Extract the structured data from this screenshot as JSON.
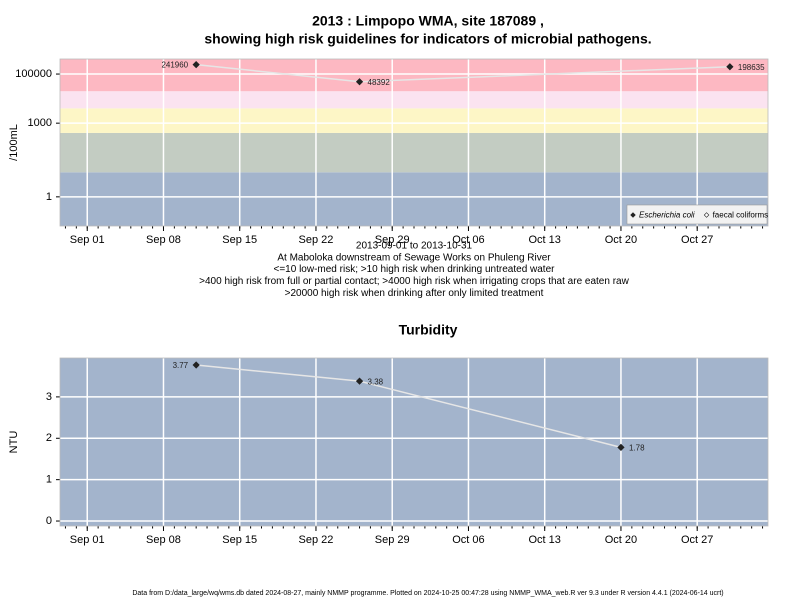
{
  "chart_data": [
    {
      "type": "line",
      "title": [
        "2013 : Limpopo WMA, site 187089 ,",
        "showing high risk guidelines for indicators of microbial pathogens."
      ],
      "ylabel": "/100mL",
      "log_y": true,
      "grid": true,
      "ylim": [
        0.065,
        410000
      ],
      "yticks": [
        1,
        1000,
        100000
      ],
      "xlim": [
        "2013-08-29T12:00:00Z",
        "2013-11-02T12:00:00Z"
      ],
      "xticks": [
        {
          "value": "2013-09-01",
          "label": "Sep 01"
        },
        {
          "value": "2013-09-08",
          "label": "Sep 08"
        },
        {
          "value": "2013-09-15",
          "label": "Sep 15"
        },
        {
          "value": "2013-09-22",
          "label": "Sep 22"
        },
        {
          "value": "2013-09-29",
          "label": "Sep 29"
        },
        {
          "value": "2013-10-06",
          "label": "Oct 06"
        },
        {
          "value": "2013-10-13",
          "label": "Oct 13"
        },
        {
          "value": "2013-10-20",
          "label": "Oct 20"
        },
        {
          "value": "2013-10-27",
          "label": "Oct 27"
        }
      ],
      "risk_thresholds": [
        10,
        400,
        4000,
        20000
      ],
      "risk_colors": [
        "#a3b4cc",
        "#c3ccc2",
        "#fdf6c6",
        "#fbe3f0",
        "#fdb8c2"
      ],
      "line_color": "#e6e6e6",
      "series": [
        {
          "name": "Escherichia coli",
          "color": "#222222",
          "x": [
            "2013-09-11",
            "2013-09-26",
            "2013-10-30"
          ],
          "values": [
            241960,
            48392,
            198635
          ]
        },
        {
          "name": "faecal coliforms",
          "color": "#ffffff",
          "x": [],
          "values": []
        }
      ],
      "notes": [
        "2013-09-01 to 2013-10-31",
        "At Maboloka downstream of Sewage Works on Phuleng River",
        "<=10 low-med risk; >10 high risk when drinking untreated water",
        ">400 high risk from full or partial contact; >4000 high risk when irrigating crops that are eaten raw",
        ">20000 high risk when drinking after only limited treatment"
      ]
    },
    {
      "type": "line",
      "title": [
        "Turbidity"
      ],
      "ylabel": "NTU",
      "log_y": false,
      "grid": true,
      "ylim": [
        -0.12,
        3.94
      ],
      "yticks": [
        0,
        1,
        2,
        3
      ],
      "xlim": [
        "2013-08-29T12:00:00Z",
        "2013-11-02T12:00:00Z"
      ],
      "xticks": [
        {
          "value": "2013-09-01",
          "label": "Sep 01"
        },
        {
          "value": "2013-09-08",
          "label": "Sep 08"
        },
        {
          "value": "2013-09-15",
          "label": "Sep 15"
        },
        {
          "value": "2013-09-22",
          "label": "Sep 22"
        },
        {
          "value": "2013-09-29",
          "label": "Sep 29"
        },
        {
          "value": "2013-10-06",
          "label": "Oct 06"
        },
        {
          "value": "2013-10-13",
          "label": "Oct 13"
        },
        {
          "value": "2013-10-20",
          "label": "Oct 20"
        },
        {
          "value": "2013-10-27",
          "label": "Oct 27"
        }
      ],
      "background": "#a3b4cc",
      "line_color": "#e6e6e6",
      "series": [
        {
          "name": "Turbidity",
          "color": "#222222",
          "x": [
            "2013-09-11",
            "2013-09-26",
            "2013-10-20"
          ],
          "values": [
            3.77,
            3.38,
            1.78
          ]
        }
      ]
    }
  ],
  "footer": "Data from D:/data_large/wq/wms.db dated 2024-08-27, mainly NMMP programme. Plotted on 2024-10-25 00:47:28 using NMMP_WMA_web.R ver 9.3 under R version 4.4.1 (2024-06-14 ucrt)"
}
